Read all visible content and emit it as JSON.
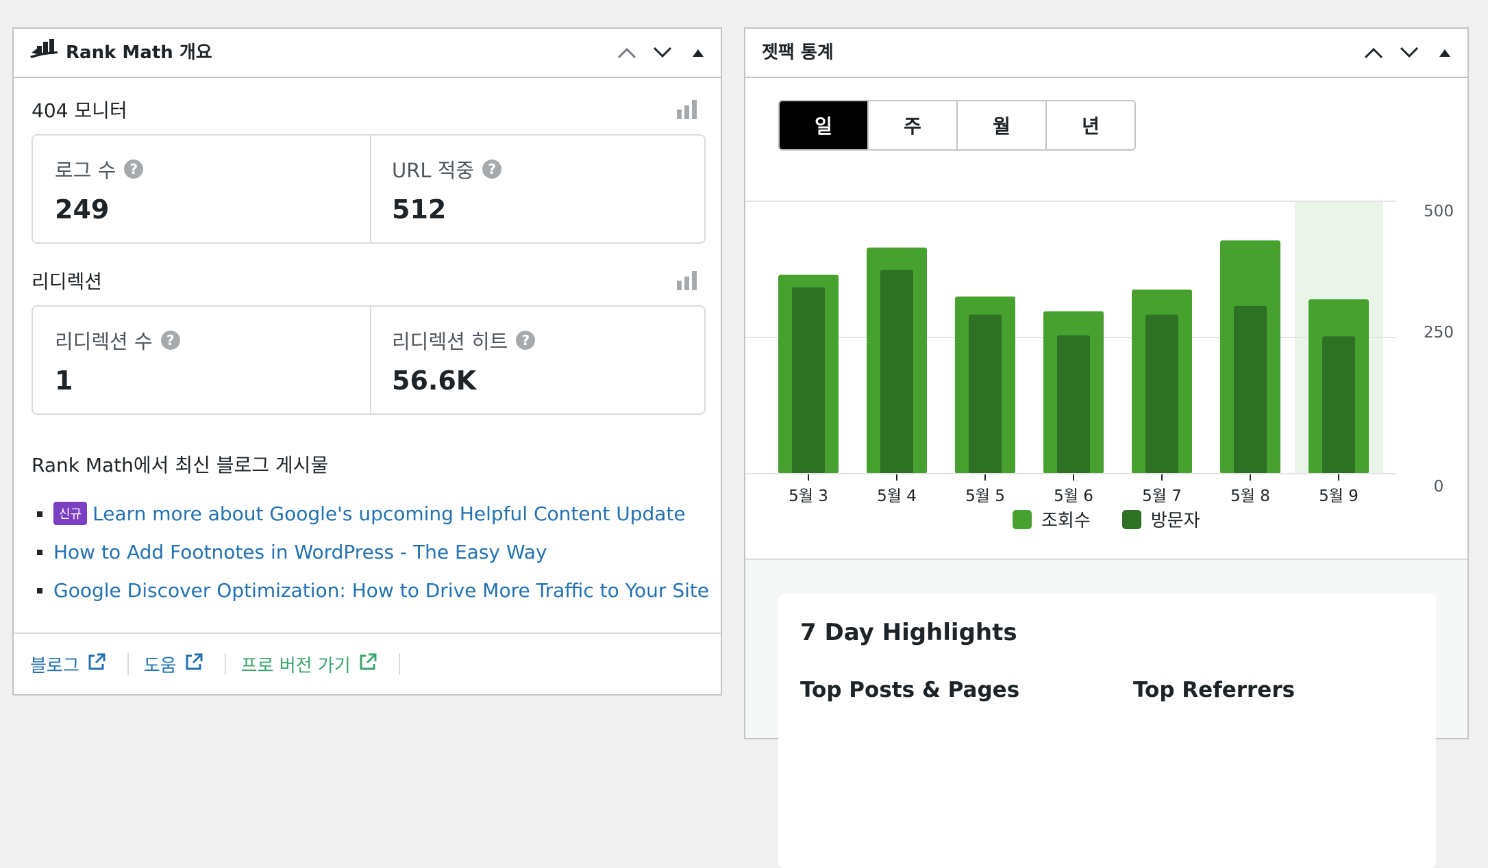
{
  "rank_math": {
    "title": "Rank Math 개요",
    "monitor": {
      "title": "404 모니터",
      "stats": [
        {
          "label": "로그 수",
          "value": "249"
        },
        {
          "label": "URL 적중",
          "value": "512"
        }
      ]
    },
    "redirection": {
      "title": "리디렉션",
      "stats": [
        {
          "label": "리디렉션 수",
          "value": "1"
        },
        {
          "label": "리디렉션 히트",
          "value": "56.6K"
        }
      ]
    },
    "blog": {
      "title": "Rank Math에서 최신 블로그 게시물",
      "new_badge": "신규",
      "posts": [
        "Learn more about Google's upcoming Helpful Content Update",
        "How to Add Footnotes in WordPress - The Easy Way",
        "Google Discover Optimization: How to Drive More Traffic to Your Site"
      ]
    },
    "footer": [
      {
        "label": "블로그",
        "color": "#2271b1"
      },
      {
        "label": "도움",
        "color": "#2271b1"
      },
      {
        "label": "프로 버전 가기",
        "color": "#3aa46a"
      }
    ]
  },
  "jetpack": {
    "title": "젯팩 통계",
    "tabs": [
      "일",
      "주",
      "월",
      "년"
    ],
    "active_tab": "일",
    "legend": [
      "조회수",
      "방문자"
    ],
    "highlights": {
      "title": "7 Day Highlights",
      "top_posts": "Top Posts & Pages",
      "top_referrers": "Top Referrers"
    }
  },
  "chart_data": {
    "type": "bar",
    "categories": [
      "5월 3",
      "5월 4",
      "5월 5",
      "5월 6",
      "5월 7",
      "5월 8",
      "5월 9"
    ],
    "series": [
      {
        "name": "조회수",
        "values": [
          365,
          415,
          325,
          298,
          338,
          428,
          320
        ],
        "color": "#46a12f"
      },
      {
        "name": "방문자",
        "values": [
          342,
          374,
          292,
          254,
          292,
          308,
          252
        ],
        "color": "#2e7024"
      }
    ],
    "yticks": [
      "500",
      "250",
      "0"
    ],
    "ylim": [
      0,
      500
    ],
    "highlighted_category": "5월 9"
  }
}
